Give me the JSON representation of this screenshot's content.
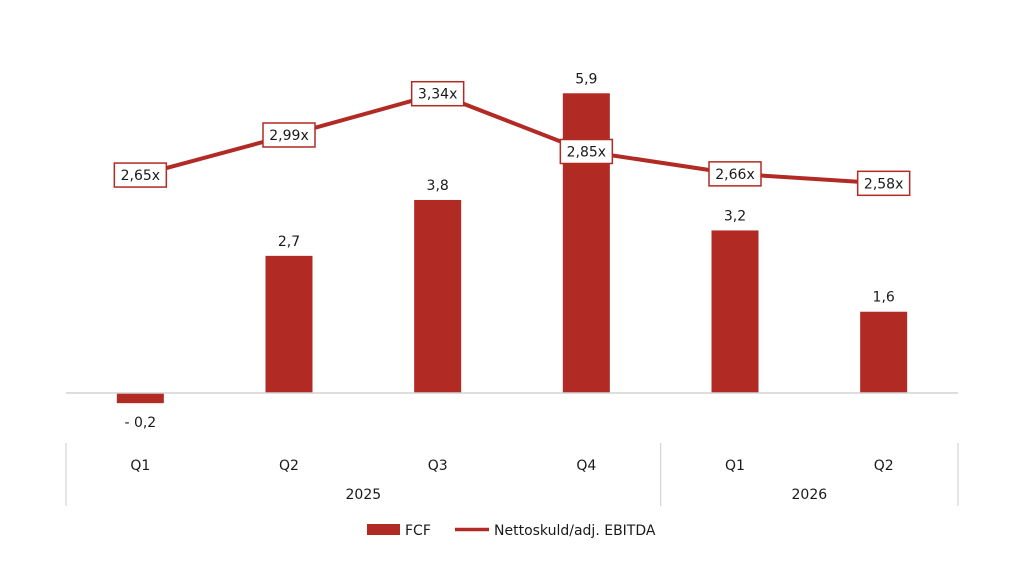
{
  "chart_data": {
    "type": "bar",
    "categories": [
      "Q1",
      "Q2",
      "Q3",
      "Q4",
      "Q1",
      "Q2"
    ],
    "groups": [
      {
        "label": "2025",
        "categories": [
          "Q1",
          "Q2",
          "Q3",
          "Q4"
        ]
      },
      {
        "label": "2026",
        "categories": [
          "Q1",
          "Q2"
        ]
      }
    ],
    "series": [
      {
        "name": "FCF",
        "type": "bar",
        "color": "#b22a24",
        "values": [
          -0.2,
          2.7,
          3.8,
          5.9,
          3.2,
          1.6
        ],
        "labels": [
          "- 0,2",
          "2,7",
          "3,8",
          "5,9",
          "3,2",
          "1,6"
        ]
      },
      {
        "name": "Nettoskuld/adj. EBITDA",
        "type": "line",
        "color": "#b22a24",
        "values": [
          2.65,
          2.99,
          3.34,
          2.85,
          2.66,
          2.58
        ],
        "labels": [
          "2,65x",
          "2,99x",
          "3,34x",
          "2,85x",
          "2,66x",
          "2,58x"
        ]
      }
    ],
    "legend": {
      "position": "bottom"
    },
    "grid": false
  }
}
